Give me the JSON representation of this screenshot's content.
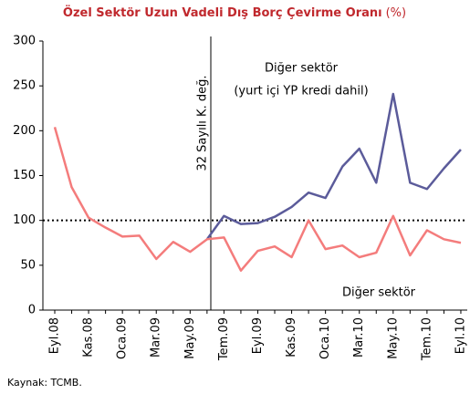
{
  "chart_data": {
    "type": "line",
    "title": "Özel Sektör Uzun Vadeli Dış Borç Çevirme Oranı",
    "title_unit": "(%)",
    "categories": [
      "Eyl.08",
      null,
      "Kas.08",
      null,
      "Oca.09",
      null,
      "Mar.09",
      null,
      "May.09",
      null,
      "Tem.09",
      null,
      "Eyl.09",
      null,
      "Kas.09",
      null,
      "Oca.10",
      null,
      "Mar.10",
      null,
      "May.10",
      null,
      "Tem.10",
      null,
      "Eyl.10"
    ],
    "series": [
      {
        "name": "Diğer sektör",
        "name_note": "(yurt içi YP kredi dahil)",
        "color": "#5b5b9a",
        "values": [
          null,
          null,
          null,
          null,
          null,
          null,
          null,
          null,
          null,
          79,
          105,
          96,
          97,
          104,
          115,
          131,
          125,
          160,
          180,
          142,
          241,
          142,
          135,
          158,
          179
        ]
      },
      {
        "name": "Diğer sektör",
        "color": "#f47c7c",
        "values": [
          204,
          137,
          103,
          92,
          82,
          83,
          57,
          76,
          65,
          79,
          81,
          44,
          66,
          71,
          59,
          100,
          68,
          72,
          59,
          64,
          105,
          61,
          89,
          79,
          75
        ]
      }
    ],
    "ylim": [
      0,
      300
    ],
    "yticks": [
      0,
      50,
      100,
      150,
      200,
      250,
      300
    ],
    "reference_line": 100,
    "annotation": "32 Sayılı K. değ.",
    "source": "Kaynak: TCMB."
  }
}
